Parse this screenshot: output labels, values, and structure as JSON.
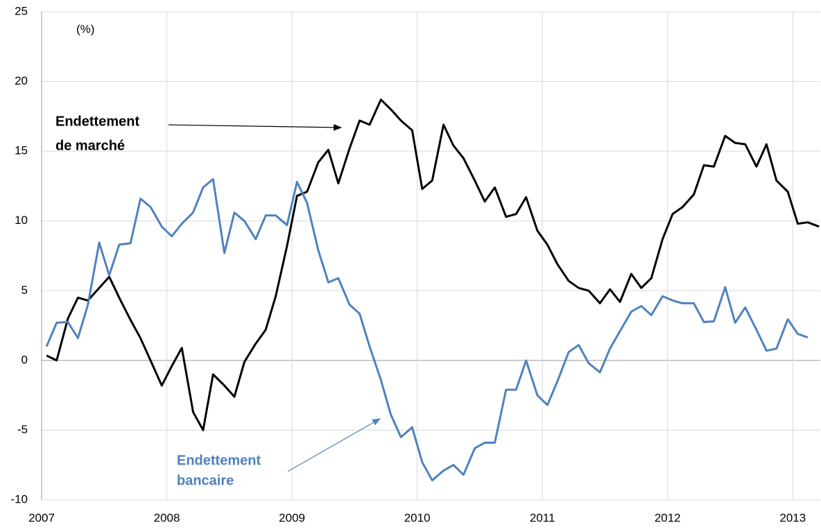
{
  "chart_data": {
    "type": "line",
    "y_label": "(%)",
    "annotations": [
      {
        "lines": [
          "Endettement",
          "de marché"
        ]
      },
      {
        "lines": [
          "Endettement",
          "bancaire"
        ]
      }
    ],
    "x": [
      2007.04,
      2007.12,
      2007.21,
      2007.29,
      2007.37,
      2007.46,
      2007.54,
      2007.62,
      2007.71,
      2007.79,
      2007.87,
      2007.96,
      2008.04,
      2008.12,
      2008.21,
      2008.29,
      2008.37,
      2008.46,
      2008.54,
      2008.62,
      2008.71,
      2008.79,
      2008.87,
      2008.96,
      2009.04,
      2009.12,
      2009.21,
      2009.29,
      2009.37,
      2009.46,
      2009.54,
      2009.62,
      2009.71,
      2009.79,
      2009.87,
      2009.96,
      2010.04,
      2010.12,
      2010.21,
      2010.29,
      2010.37,
      2010.46,
      2010.54,
      2010.62,
      2010.71,
      2010.79,
      2010.87,
      2010.96,
      2011.04,
      2011.12,
      2011.21,
      2011.29,
      2011.37,
      2011.46,
      2011.54,
      2011.62,
      2011.71,
      2011.79,
      2011.87,
      2011.96,
      2012.04,
      2012.12,
      2012.21,
      2012.29,
      2012.37,
      2012.46,
      2012.54,
      2012.62,
      2012.71,
      2012.79,
      2012.87,
      2012.96,
      2013.04,
      2013.12,
      2013.21
    ],
    "series": [
      {
        "name": "Endettement de marché",
        "color": "#000000",
        "values": [
          0.35,
          0,
          3,
          4.5,
          4.3,
          5.2,
          6,
          4.5,
          2.9,
          1.6,
          0,
          -1.8,
          -0.4,
          0.9,
          -3.7,
          -5,
          -1,
          -1.8,
          -2.6,
          -0.1,
          1.2,
          2.2,
          4.6,
          8.2,
          11.8,
          12.1,
          14.2,
          15.1,
          12.7,
          15.2,
          17.2,
          16.9,
          18.7,
          18,
          17.2,
          16.5,
          12.3,
          12.9,
          16.9,
          15.4,
          14.5,
          12.9,
          11.4,
          12.4,
          10.3,
          10.5,
          11.7,
          9.3,
          8.3,
          6.9,
          5.7,
          5.2,
          5,
          4.1,
          5.1,
          4.2,
          6.2,
          5.2,
          5.9,
          8.7,
          10.5,
          11,
          11.9,
          14,
          13.9,
          16.1,
          15.6,
          15.5,
          13.9,
          15.5,
          12.9,
          12.1,
          9.8,
          9.9,
          9.6
        ]
      },
      {
        "name": "Endettement bancaire",
        "color": "#4f81bd",
        "values": [
          1,
          2.7,
          2.75,
          1.6,
          4,
          8.45,
          6.1,
          8.3,
          8.4,
          11.6,
          11,
          9.6,
          8.9,
          9.8,
          10.6,
          12.4,
          13,
          7.7,
          10.6,
          10,
          8.7,
          10.4,
          10.4,
          9.7,
          12.8,
          11.3,
          7.9,
          5.6,
          5.9,
          4,
          3.35,
          1,
          -1.4,
          -3.9,
          -5.5,
          -4.8,
          -7.3,
          -8.6,
          -7.9,
          -7.5,
          -8.2,
          -6.3,
          -5.9,
          -5.9,
          -2.1,
          -2.1,
          0,
          -2.5,
          -3.2,
          -1.5,
          0.6,
          1.1,
          -0.2,
          -0.85,
          0.85,
          2.1,
          3.5,
          3.9,
          3.25,
          4.6,
          4.3,
          4.1,
          4.1,
          2.75,
          2.8,
          5.25,
          2.7,
          3.8,
          2.2,
          0.7,
          0.85,
          2.95,
          1.9,
          1.65,
          null
        ]
      }
    ],
    "xlim": [
      2007,
      2013.22
    ],
    "xticks": [
      2007,
      2008,
      2009,
      2010,
      2011,
      2012,
      2013
    ],
    "ylim": [
      -10,
      25
    ],
    "yticks": [
      -10,
      -5,
      0,
      5,
      10,
      15,
      20,
      25
    ],
    "grid": true
  }
}
